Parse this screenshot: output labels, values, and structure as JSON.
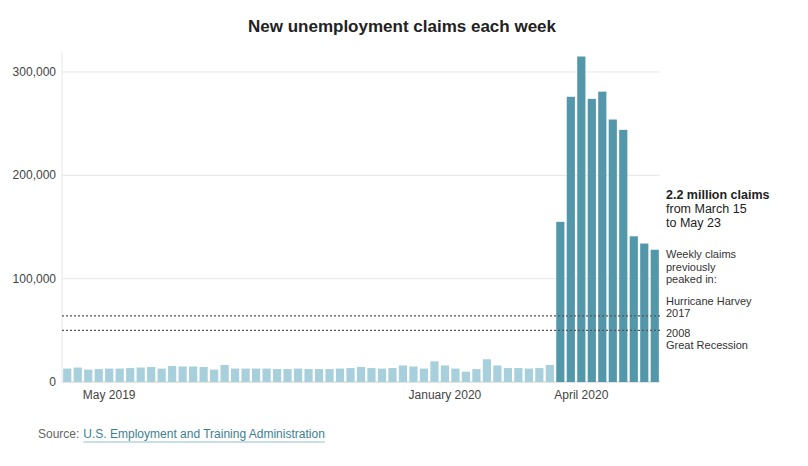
{
  "chart_data": {
    "type": "bar",
    "title": "New unemployment claims each week",
    "categories": [
      null,
      null,
      null,
      null,
      "May 2019",
      null,
      null,
      null,
      null,
      null,
      null,
      null,
      null,
      null,
      null,
      null,
      null,
      null,
      null,
      null,
      null,
      null,
      null,
      null,
      null,
      null,
      null,
      null,
      null,
      null,
      null,
      null,
      null,
      null,
      null,
      null,
      "January 2020",
      null,
      null,
      null,
      null,
      null,
      null,
      null,
      null,
      null,
      null,
      null,
      null,
      "April 2020",
      null,
      null,
      null,
      null,
      null,
      null,
      null
    ],
    "values": [
      13000,
      14000,
      12000,
      12500,
      13000,
      13000,
      13500,
      14000,
      14500,
      13000,
      15500,
      15000,
      15000,
      14500,
      12000,
      16500,
      13000,
      13000,
      13000,
      13000,
      12500,
      12500,
      13000,
      12500,
      12500,
      12500,
      13000,
      13500,
      14500,
      13500,
      13000,
      13500,
      16000,
      15000,
      13000,
      20000,
      16000,
      13000,
      10000,
      12500,
      22000,
      16000,
      13500,
      13500,
      13000,
      13500,
      16500,
      155000,
      276000,
      315000,
      274000,
      281000,
      254000,
      244000,
      141000,
      134000,
      128000
    ],
    "colors": [
      "#a7d0dc",
      "#a7d0dc",
      "#a7d0dc",
      "#a7d0dc",
      "#a7d0dc",
      "#a7d0dc",
      "#a7d0dc",
      "#a7d0dc",
      "#a7d0dc",
      "#a7d0dc",
      "#a7d0dc",
      "#a7d0dc",
      "#a7d0dc",
      "#a7d0dc",
      "#a7d0dc",
      "#a7d0dc",
      "#a7d0dc",
      "#a7d0dc",
      "#a7d0dc",
      "#a7d0dc",
      "#a7d0dc",
      "#a7d0dc",
      "#a7d0dc",
      "#a7d0dc",
      "#a7d0dc",
      "#a7d0dc",
      "#a7d0dc",
      "#a7d0dc",
      "#a7d0dc",
      "#a7d0dc",
      "#a7d0dc",
      "#a7d0dc",
      "#a7d0dc",
      "#a7d0dc",
      "#a7d0dc",
      "#a7d0dc",
      "#a7d0dc",
      "#a7d0dc",
      "#a7d0dc",
      "#a7d0dc",
      "#a7d0dc",
      "#a7d0dc",
      "#a7d0dc",
      "#a7d0dc",
      "#a7d0dc",
      "#a7d0dc",
      "#a7d0dc",
      "#5398aa",
      "#5398aa",
      "#5398aa",
      "#5398aa",
      "#5398aa",
      "#5398aa",
      "#5398aa",
      "#5398aa",
      "#5398aa",
      "#5398aa"
    ],
    "ylim": [
      0,
      320000
    ],
    "yticks": [
      0,
      {
        "value": 100000,
        "label": "100,000"
      },
      {
        "value": 200000,
        "label": "200,000"
      },
      {
        "value": 300000,
        "label": "300,000"
      }
    ],
    "grid": true,
    "annotation": {
      "headline": "2.2 million claims",
      "lines": [
        "from March 15",
        "to May 23"
      ]
    },
    "reference_note": [
      "Weekly claims",
      "previously",
      "peaked in:"
    ],
    "reference_lines": [
      {
        "value": 64000,
        "label": [
          "Hurricane Harvey",
          "2017"
        ]
      },
      {
        "value": 50000,
        "label": [
          "2008",
          "Great Recession"
        ]
      }
    ],
    "source": {
      "prefix": "Source:",
      "link": "U.S. Employment and Training Administration"
    }
  }
}
